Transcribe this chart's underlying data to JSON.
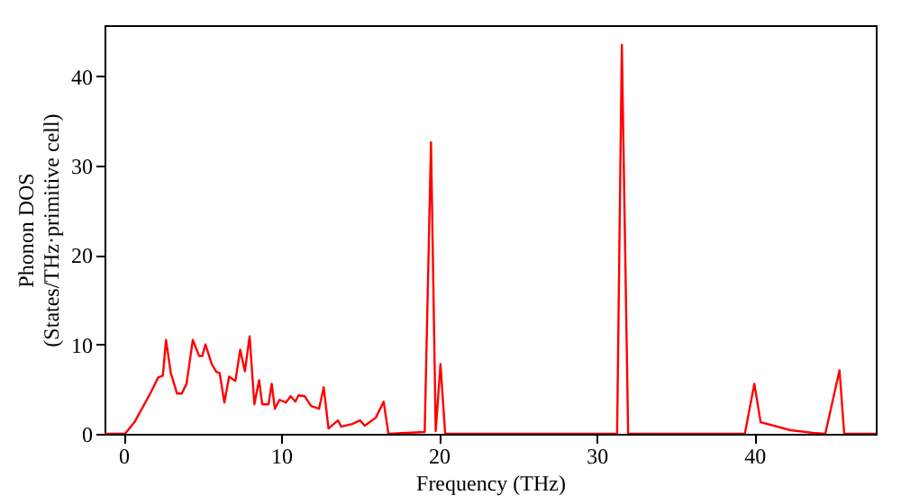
{
  "chart_data": {
    "type": "line",
    "xlabel": "Frequency (THz)",
    "ylabel": "Phonon DOS\n(States/THz·primitive cell)",
    "xlim": [
      -1.2,
      47.7
    ],
    "ylim": [
      0,
      45.7
    ],
    "xticks": [
      0,
      10,
      20,
      30,
      40
    ],
    "yticks": [
      0,
      10,
      20,
      30,
      40
    ],
    "grid": false,
    "legend": false,
    "marker": "none",
    "line_style": "solid",
    "series": [
      {
        "color": "#ff0000",
        "x": [
          -1.2,
          0.1,
          0.7,
          1.7,
          2.2,
          2.5,
          2.7,
          3.0,
          3.4,
          3.7,
          4.0,
          4.4,
          4.8,
          5.0,
          5.2,
          5.6,
          5.9,
          6.1,
          6.4,
          6.7,
          7.1,
          7.4,
          7.7,
          8.0,
          8.3,
          8.6,
          8.8,
          9.2,
          9.4,
          9.6,
          9.9,
          10.3,
          10.6,
          10.9,
          11.1,
          11.5,
          11.9,
          12.4,
          12.7,
          13.0,
          13.6,
          13.8,
          14.5,
          15.0,
          15.3,
          16.0,
          16.5,
          16.8,
          19.1,
          19.5,
          19.8,
          20.1,
          20.4,
          31.3,
          31.6,
          32.0,
          39.4,
          40.0,
          40.4,
          42.3,
          43.7,
          44.5,
          45.4,
          45.7,
          47.7
        ],
        "values": [
          0,
          0,
          1.3,
          4.5,
          6.3,
          6.5,
          10.5,
          6.8,
          4.5,
          4.5,
          5.6,
          10.5,
          8.7,
          8.7,
          10,
          7.8,
          6.9,
          6.8,
          3.5,
          6.4,
          5.9,
          9.4,
          7,
          10.9,
          3.3,
          6,
          3.3,
          3.3,
          5.6,
          2.8,
          3.8,
          3.5,
          4.2,
          3.6,
          4.3,
          4.2,
          3.1,
          2.8,
          5.2,
          0.6,
          1.5,
          0.8,
          1.1,
          1.5,
          0.9,
          1.8,
          3.6,
          0,
          0.2,
          32.6,
          0.3,
          7.8,
          0,
          0,
          43.5,
          0,
          0,
          5.6,
          1.3,
          0.4,
          0.1,
          0,
          7.1,
          0,
          0
        ]
      }
    ]
  }
}
